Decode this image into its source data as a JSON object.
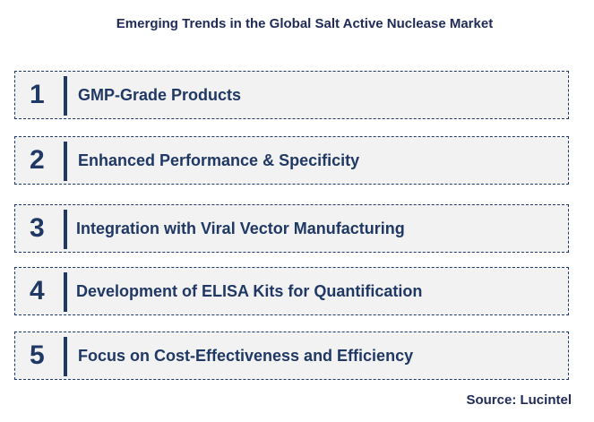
{
  "title": "Emerging Trends in the Global Salt Active Nuclease Market",
  "trends": [
    {
      "number": "1",
      "label": "GMP-Grade Products"
    },
    {
      "number": "2",
      "label": "Enhanced Performance & Specificity"
    },
    {
      "number": "3",
      "label": "Integration with Viral Vector Manufacturing"
    },
    {
      "number": "4",
      "label": "Development of ELISA Kits for Quantification"
    },
    {
      "number": "5",
      "label": "Focus on Cost-Effectiveness and Efficiency"
    }
  ],
  "source": "Source: Lucintel",
  "colors": {
    "accent": "#1f3864",
    "box_background": "#f2f2f2"
  }
}
